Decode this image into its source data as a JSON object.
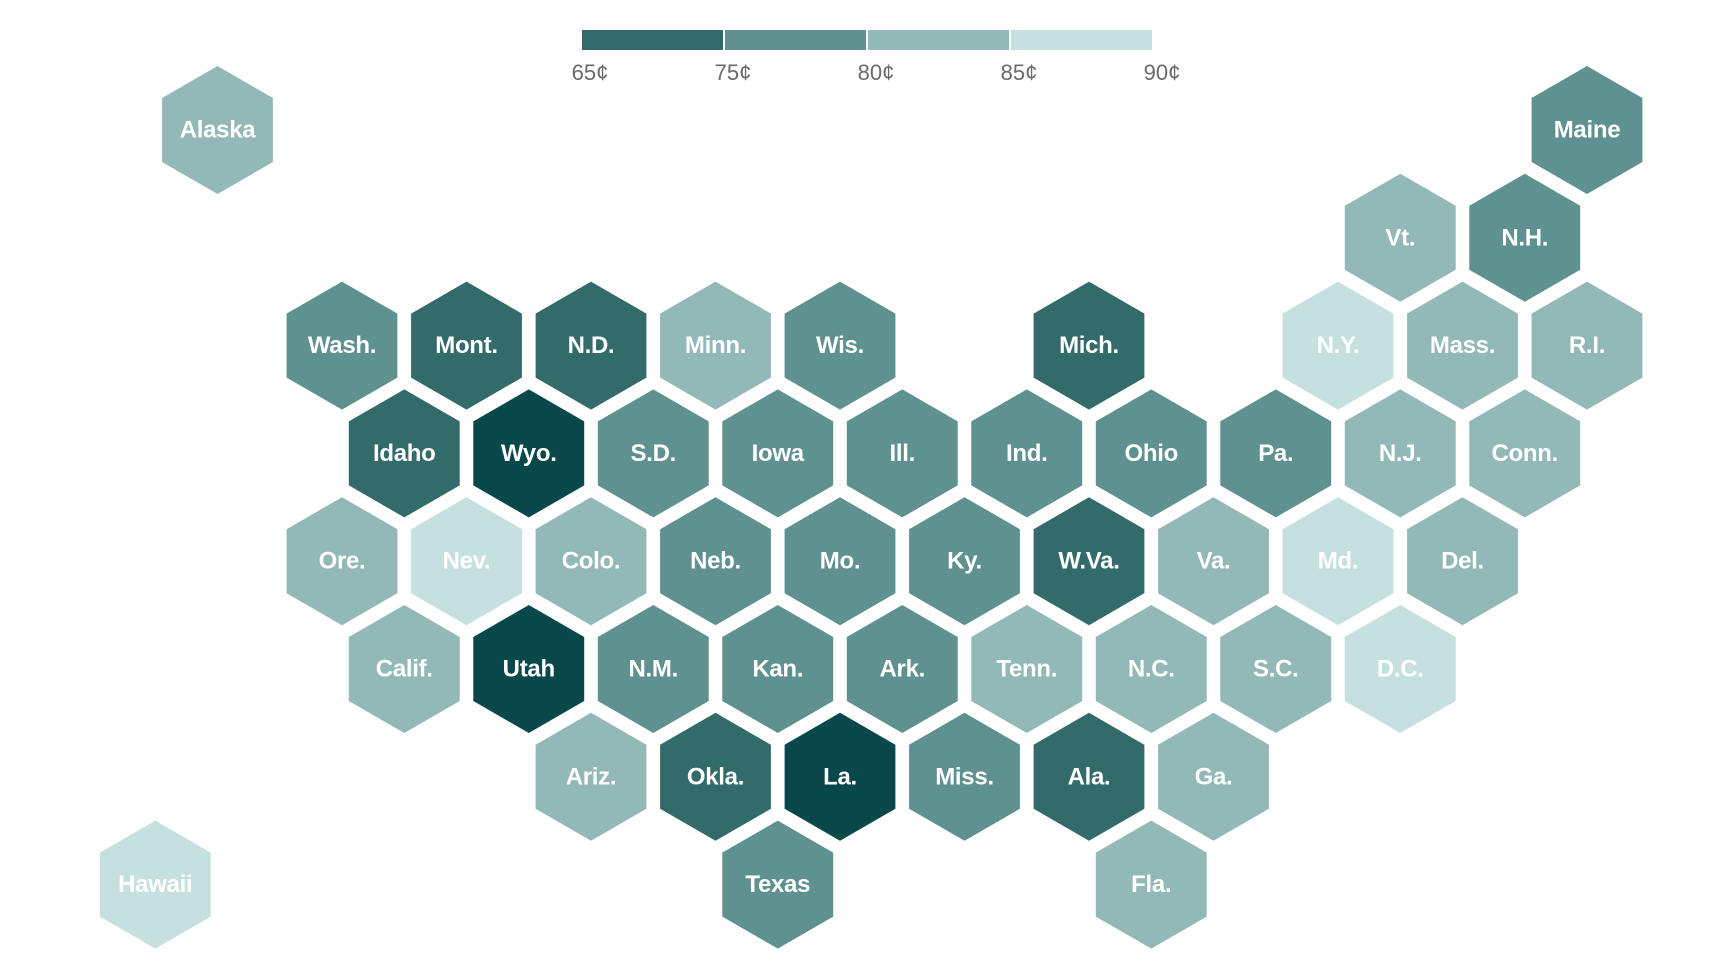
{
  "legend": {
    "bins": [
      {
        "color": "#336b6b"
      },
      {
        "color": "#5f9190"
      },
      {
        "color": "#92b8b7"
      },
      {
        "color": "#c6e0e0"
      }
    ],
    "ticks": [
      "65¢",
      "75¢",
      "80¢",
      "85¢",
      "90¢"
    ]
  },
  "palette": {
    "darkest": "#08484a",
    "dark": "#336b6b",
    "mid": "#5f9190",
    "light": "#92b8b7",
    "lightest": "#c6e0e0",
    "label": "#ffffff"
  },
  "states": [
    {
      "label": "Alaska",
      "row": 0,
      "col": 1,
      "bin": "light"
    },
    {
      "label": "Maine",
      "row": 0,
      "col": 12,
      "bin": "mid"
    },
    {
      "label": "Vt.",
      "row": 1,
      "col": 10.5,
      "bin": "light"
    },
    {
      "label": "N.H.",
      "row": 1,
      "col": 11.5,
      "bin": "mid"
    },
    {
      "label": "Wash.",
      "row": 2,
      "col": 2,
      "bin": "mid"
    },
    {
      "label": "Mont.",
      "row": 2,
      "col": 3,
      "bin": "dark"
    },
    {
      "label": "N.D.",
      "row": 2,
      "col": 4,
      "bin": "dark"
    },
    {
      "label": "Minn.",
      "row": 2,
      "col": 5,
      "bin": "light"
    },
    {
      "label": "Wis.",
      "row": 2,
      "col": 6,
      "bin": "mid"
    },
    {
      "label": "Mich.",
      "row": 2,
      "col": 8,
      "bin": "dark"
    },
    {
      "label": "N.Y.",
      "row": 2,
      "col": 10,
      "bin": "lightest"
    },
    {
      "label": "Mass.",
      "row": 2,
      "col": 11,
      "bin": "light"
    },
    {
      "label": "R.I.",
      "row": 2,
      "col": 12,
      "bin": "light"
    },
    {
      "label": "Idaho",
      "row": 3,
      "col": 2.5,
      "bin": "dark"
    },
    {
      "label": "Wyo.",
      "row": 3,
      "col": 3.5,
      "bin": "darkest"
    },
    {
      "label": "S.D.",
      "row": 3,
      "col": 4.5,
      "bin": "mid"
    },
    {
      "label": "Iowa",
      "row": 3,
      "col": 5.5,
      "bin": "mid"
    },
    {
      "label": "Ill.",
      "row": 3,
      "col": 6.5,
      "bin": "mid"
    },
    {
      "label": "Ind.",
      "row": 3,
      "col": 7.5,
      "bin": "mid"
    },
    {
      "label": "Ohio",
      "row": 3,
      "col": 8.5,
      "bin": "mid"
    },
    {
      "label": "Pa.",
      "row": 3,
      "col": 9.5,
      "bin": "mid"
    },
    {
      "label": "N.J.",
      "row": 3,
      "col": 10.5,
      "bin": "light"
    },
    {
      "label": "Conn.",
      "row": 3,
      "col": 11.5,
      "bin": "light"
    },
    {
      "label": "Ore.",
      "row": 4,
      "col": 2,
      "bin": "light"
    },
    {
      "label": "Nev.",
      "row": 4,
      "col": 3,
      "bin": "lightest"
    },
    {
      "label": "Colo.",
      "row": 4,
      "col": 4,
      "bin": "light"
    },
    {
      "label": "Neb.",
      "row": 4,
      "col": 5,
      "bin": "mid"
    },
    {
      "label": "Mo.",
      "row": 4,
      "col": 6,
      "bin": "mid"
    },
    {
      "label": "Ky.",
      "row": 4,
      "col": 7,
      "bin": "mid"
    },
    {
      "label": "W.Va.",
      "row": 4,
      "col": 8,
      "bin": "dark"
    },
    {
      "label": "Va.",
      "row": 4,
      "col": 9,
      "bin": "light"
    },
    {
      "label": "Md.",
      "row": 4,
      "col": 10,
      "bin": "lightest"
    },
    {
      "label": "Del.",
      "row": 4,
      "col": 11,
      "bin": "light"
    },
    {
      "label": "Calif.",
      "row": 5,
      "col": 2.5,
      "bin": "light"
    },
    {
      "label": "Utah",
      "row": 5,
      "col": 3.5,
      "bin": "darkest"
    },
    {
      "label": "N.M.",
      "row": 5,
      "col": 4.5,
      "bin": "mid"
    },
    {
      "label": "Kan.",
      "row": 5,
      "col": 5.5,
      "bin": "mid"
    },
    {
      "label": "Ark.",
      "row": 5,
      "col": 6.5,
      "bin": "mid"
    },
    {
      "label": "Tenn.",
      "row": 5,
      "col": 7.5,
      "bin": "light"
    },
    {
      "label": "N.C.",
      "row": 5,
      "col": 8.5,
      "bin": "light"
    },
    {
      "label": "S.C.",
      "row": 5,
      "col": 9.5,
      "bin": "light"
    },
    {
      "label": "D.C.",
      "row": 5,
      "col": 10.5,
      "bin": "lightest"
    },
    {
      "label": "Ariz.",
      "row": 6,
      "col": 4,
      "bin": "light"
    },
    {
      "label": "Okla.",
      "row": 6,
      "col": 5,
      "bin": "dark"
    },
    {
      "label": "La.",
      "row": 6,
      "col": 6,
      "bin": "darkest"
    },
    {
      "label": "Miss.",
      "row": 6,
      "col": 7,
      "bin": "mid"
    },
    {
      "label": "Ala.",
      "row": 6,
      "col": 8,
      "bin": "dark"
    },
    {
      "label": "Ga.",
      "row": 6,
      "col": 9,
      "bin": "light"
    },
    {
      "label": "Hawaii",
      "row": 7,
      "col": 0.5,
      "bin": "lightest"
    },
    {
      "label": "Texas",
      "row": 7,
      "col": 5.5,
      "bin": "mid"
    },
    {
      "label": "Fla.",
      "row": 7,
      "col": 8.5,
      "bin": "light"
    }
  ]
}
